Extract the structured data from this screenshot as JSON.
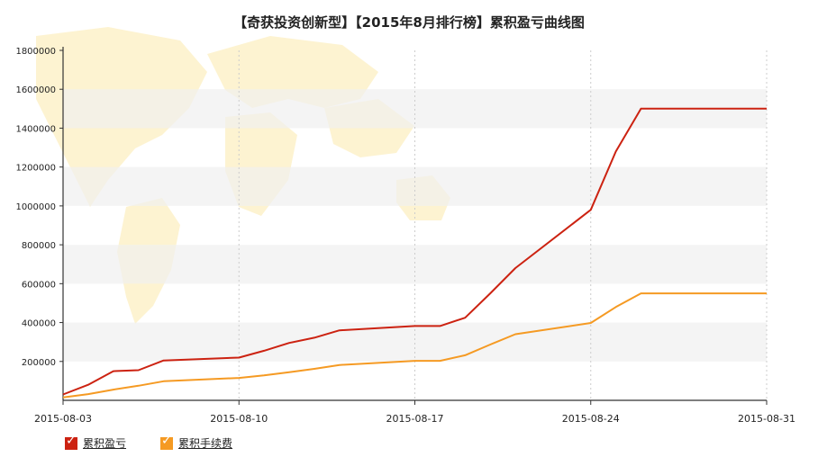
{
  "chart_data": {
    "type": "line",
    "title": "【奇获投资创新型】【2015年8月排行榜】累积盈亏曲线图",
    "x": [
      "2015-08-03",
      "2015-08-04",
      "2015-08-05",
      "2015-08-06",
      "2015-08-07",
      "2015-08-10",
      "2015-08-11",
      "2015-08-12",
      "2015-08-13",
      "2015-08-14",
      "2015-08-17",
      "2015-08-18",
      "2015-08-19",
      "2015-08-20",
      "2015-08-21",
      "2015-08-24",
      "2015-08-25",
      "2015-08-26",
      "2015-08-27",
      "2015-08-28",
      "2015-08-31"
    ],
    "x_ticks": [
      "2015-08-03",
      "2015-08-10",
      "2015-08-17",
      "2015-08-24",
      "2015-08-31"
    ],
    "y_ticks": [
      200000,
      400000,
      600000,
      800000,
      1000000,
      1200000,
      1400000,
      1600000,
      1800000
    ],
    "ylim": [
      0,
      1800000
    ],
    "grid": "alternating horizontal bands, dashed vertical lines",
    "series": [
      {
        "name": "累积盈亏",
        "color": "#cc2211",
        "values": [
          30000,
          80000,
          150000,
          155000,
          205000,
          220000,
          255000,
          295000,
          322000,
          360000,
          382000,
          382000,
          425000,
          550000,
          680000,
          980000,
          1280000,
          1500000,
          1500000,
          1500000,
          1500000
        ]
      },
      {
        "name": "累积手续费",
        "color": "#f59a23",
        "values": [
          15000,
          32000,
          55000,
          75000,
          98000,
          115000,
          128000,
          145000,
          162000,
          182000,
          203000,
          203000,
          232000,
          287000,
          340000,
          398000,
          480000,
          550000,
          550000,
          550000,
          550000
        ]
      }
    ]
  }
}
